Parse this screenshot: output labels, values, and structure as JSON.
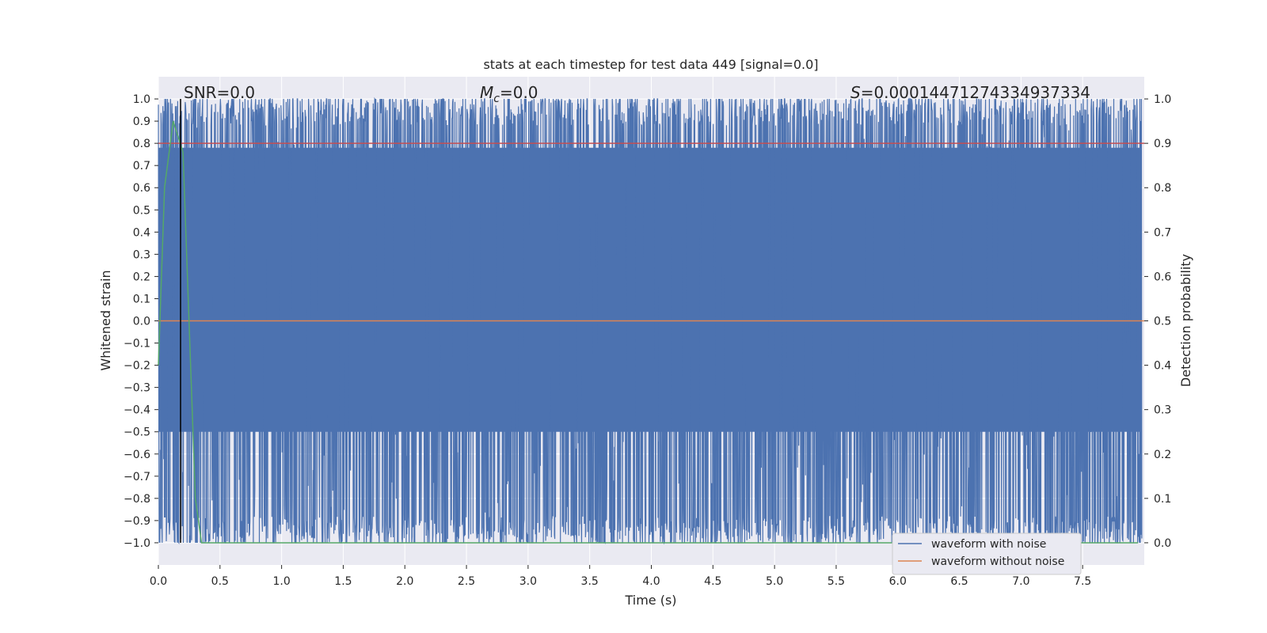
{
  "chart_data": {
    "type": "line",
    "title": "stats at each timestep for test data 449 [signal=0.0]",
    "xlabel": "Time (s)",
    "ylabel": "Whitened strain",
    "y2label": "Detection probability",
    "xlim": [
      0.0,
      8.0
    ],
    "ylim": [
      -1.1,
      1.1
    ],
    "y2lim": [
      -0.05,
      1.05
    ],
    "x_ticks": [
      "0.0",
      "0.5",
      "1.0",
      "1.5",
      "2.0",
      "2.5",
      "3.0",
      "3.5",
      "4.0",
      "4.5",
      "5.0",
      "5.5",
      "6.0",
      "6.5",
      "7.0",
      "7.5"
    ],
    "y_ticks": [
      "1.0",
      "0.9",
      "0.8",
      "0.7",
      "0.6",
      "0.5",
      "0.4",
      "0.3",
      "0.2",
      "0.1",
      "0.0",
      "−0.1",
      "−0.2",
      "−0.3",
      "−0.4",
      "−0.5",
      "−0.6",
      "−0.7",
      "−0.8",
      "−0.9",
      "−1.0"
    ],
    "y2_ticks": [
      "1.0",
      "0.9",
      "0.8",
      "0.7",
      "0.6",
      "0.5",
      "0.4",
      "0.3",
      "0.2",
      "0.1",
      "0.0"
    ],
    "grid": true,
    "annotations": {
      "snr": "SNR=0.0",
      "mc_symbol": "M",
      "mc_sub": "c",
      "mc_value": "=0.0",
      "s_symbol": "S",
      "s_value": "=0.00014471274334937334"
    },
    "series": [
      {
        "name": "waveform with noise",
        "color": "#4c72b0",
        "description_range": [
          -1.0,
          1.0
        ],
        "style": "noise"
      },
      {
        "name": "waveform without noise",
        "color": "#dd8452",
        "x": [
          0.0,
          8.0
        ],
        "y": [
          0.0,
          0.0
        ]
      },
      {
        "name": "",
        "color": "#55a868",
        "axis": "right",
        "x": [
          0.0,
          0.05,
          0.12,
          0.2,
          0.3,
          0.35,
          7.95
        ],
        "y": [
          0.4,
          0.8,
          0.95,
          0.88,
          0.1,
          0.0,
          0.0
        ]
      },
      {
        "name": "",
        "color": "#c44e52",
        "axis": "right",
        "x": [
          0.0,
          8.0
        ],
        "y": [
          0.9,
          0.9
        ]
      },
      {
        "name": "",
        "color": "#000000",
        "style": "vline",
        "x": [
          0.18,
          0.18
        ]
      }
    ],
    "legend": {
      "placement": "lower-right",
      "entries": [
        {
          "label": "waveform with noise",
          "color": "#4c72b0"
        },
        {
          "label": "waveform without noise",
          "color": "#dd8452"
        }
      ]
    },
    "colors": {
      "background": "#eaeaf2",
      "grid": "#ffffff",
      "noise": "#4c72b0",
      "clean": "#dd8452",
      "prob": "#55a868",
      "threshold": "#c44e52",
      "marker": "#000000"
    }
  }
}
